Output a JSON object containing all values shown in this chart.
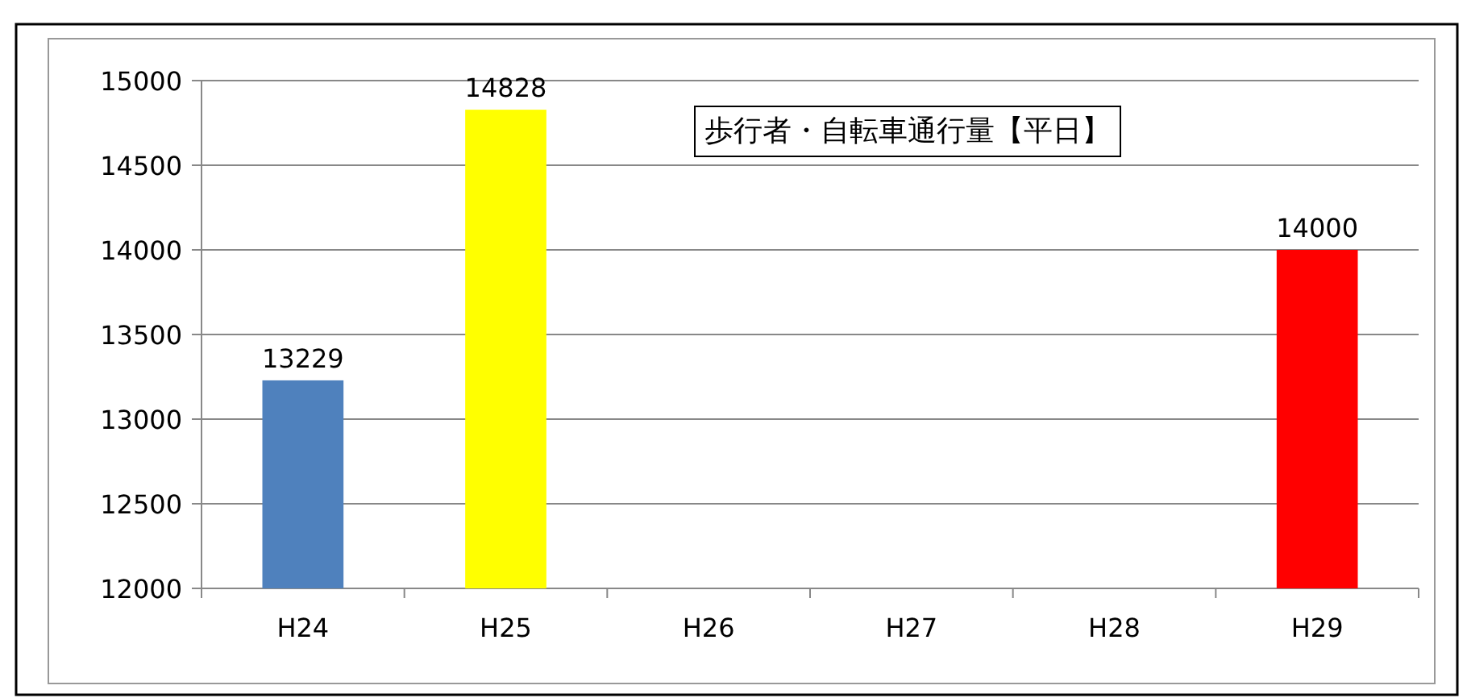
{
  "chart_data": {
    "type": "bar",
    "title": "歩行者・自転車通行量【平日】",
    "categories": [
      "H24",
      "H25",
      "H26",
      "H27",
      "H28",
      "H29"
    ],
    "values": [
      13229,
      14828,
      null,
      null,
      null,
      14000
    ],
    "colors": [
      "#4f81bd",
      "#ffff00",
      null,
      null,
      null,
      "#ff0000"
    ],
    "ylim": [
      12000,
      15000
    ],
    "yticks": [
      12000,
      12500,
      13000,
      13500,
      14000,
      14500,
      15000
    ],
    "grid": "y",
    "data_labels": true
  }
}
